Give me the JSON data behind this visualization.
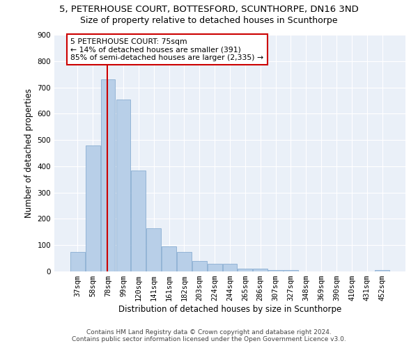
{
  "title": "5, PETERHOUSE COURT, BOTTESFORD, SCUNTHORPE, DN16 3ND",
  "subtitle": "Size of property relative to detached houses in Scunthorpe",
  "xlabel": "Distribution of detached houses by size in Scunthorpe",
  "ylabel": "Number of detached properties",
  "categories": [
    "37sqm",
    "58sqm",
    "78sqm",
    "99sqm",
    "120sqm",
    "141sqm",
    "161sqm",
    "182sqm",
    "203sqm",
    "224sqm",
    "244sqm",
    "265sqm",
    "286sqm",
    "307sqm",
    "327sqm",
    "348sqm",
    "369sqm",
    "390sqm",
    "410sqm",
    "431sqm",
    "452sqm"
  ],
  "values": [
    75,
    480,
    730,
    655,
    385,
    165,
    95,
    75,
    40,
    30,
    30,
    10,
    10,
    5,
    5,
    0,
    0,
    0,
    0,
    0,
    5
  ],
  "bar_color": "#b8cfe8",
  "bar_edge_color": "#7ba3cc",
  "marker_label": "5 PETERHOUSE COURT: 75sqm",
  "annotation_line1": "← 14% of detached houses are smaller (391)",
  "annotation_line2": "85% of semi-detached houses are larger (2,335) →",
  "marker_color": "#cc0000",
  "box_color": "#cc0000",
  "ylim": [
    0,
    900
  ],
  "yticks": [
    0,
    100,
    200,
    300,
    400,
    500,
    600,
    700,
    800,
    900
  ],
  "footer1": "Contains HM Land Registry data © Crown copyright and database right 2024.",
  "footer2": "Contains public sector information licensed under the Open Government Licence v3.0.",
  "bg_color": "#eaf0f8",
  "title_fontsize": 9.5,
  "subtitle_fontsize": 9,
  "axis_fontsize": 8.5,
  "tick_fontsize": 7.5,
  "footer_fontsize": 6.5
}
